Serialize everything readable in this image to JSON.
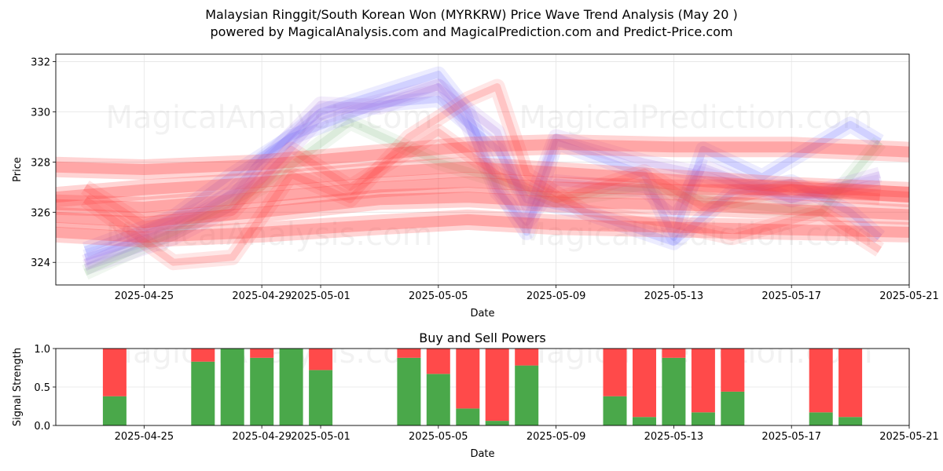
{
  "header": {
    "title_line1": "Malaysian Ringgit/South Korean Won (MYRKRW) Price Wave Trend Analysis (May 20 )",
    "title_line2": "powered by MagicalAnalysis.com and MagicalPrediction.com and Predict-Price.com"
  },
  "watermarks": [
    "MagicalAnalysis.com",
    "MagicalPrediction.com"
  ],
  "colors": {
    "buy": "#4aa84a",
    "sell": "#ff4a4a",
    "wave_red": "#ff3b3b",
    "wave_blue": "#6a6aff",
    "wave_purple": "#a070e0",
    "wave_green": "#88c088",
    "grid": "#e5e5e5"
  },
  "chart_data": [
    {
      "type": "line",
      "name": "price-wave-chart",
      "title": "",
      "xlabel": "Date",
      "ylabel": "Price",
      "xlim": [
        "2025-04-22",
        "2025-05-21"
      ],
      "ylim": [
        323.1,
        332.3
      ],
      "grid": true,
      "x_ticks": [
        "2025-04-25",
        "2025-04-29",
        "2025-05-01",
        "2025-05-05",
        "2025-05-09",
        "2025-05-13",
        "2025-05-17",
        "2025-05-21"
      ],
      "y_ticks": [
        324,
        326,
        328,
        330,
        332
      ],
      "series": [
        {
          "name": "price-path-1",
          "color": "blue",
          "x": [
            "2025-04-23",
            "2025-04-26",
            "2025-04-28",
            "2025-04-29",
            "2025-05-01",
            "2025-05-05",
            "2025-05-06",
            "2025-05-07",
            "2025-05-08",
            "2025-05-09",
            "2025-05-12",
            "2025-05-13",
            "2025-05-14",
            "2025-05-16",
            "2025-05-19",
            "2025-05-20"
          ],
          "values": [
            324.2,
            325.3,
            326.8,
            328.1,
            330.0,
            331.5,
            330.0,
            327.0,
            325.2,
            328.8,
            327.5,
            325.0,
            328.5,
            327.4,
            329.5,
            328.8
          ]
        },
        {
          "name": "price-path-2",
          "color": "purple",
          "x": [
            "2025-04-23",
            "2025-04-26",
            "2025-04-28",
            "2025-04-29",
            "2025-05-01",
            "2025-05-03",
            "2025-05-05",
            "2025-05-06",
            "2025-05-07",
            "2025-05-08",
            "2025-05-09",
            "2025-05-12",
            "2025-05-13",
            "2025-05-14",
            "2025-05-17",
            "2025-05-20"
          ],
          "values": [
            323.8,
            325.0,
            326.2,
            327.9,
            330.3,
            330.2,
            331.0,
            329.5,
            326.8,
            325.6,
            327.2,
            326.9,
            326.0,
            327.8,
            326.5,
            327.2
          ]
        },
        {
          "name": "price-path-3",
          "color": "green",
          "x": [
            "2025-04-23",
            "2025-04-26",
            "2025-04-29",
            "2025-05-02",
            "2025-05-05",
            "2025-05-07",
            "2025-05-09",
            "2025-05-12",
            "2025-05-15",
            "2025-05-18",
            "2025-05-20"
          ],
          "values": [
            323.6,
            325.2,
            327.0,
            329.6,
            328.0,
            327.3,
            326.5,
            327.0,
            326.3,
            326.0,
            328.8
          ]
        },
        {
          "name": "price-path-4",
          "color": "blue",
          "x": [
            "2025-04-23",
            "2025-04-26",
            "2025-04-28",
            "2025-04-30",
            "2025-05-03",
            "2025-05-05",
            "2025-05-07",
            "2025-05-08",
            "2025-05-10",
            "2025-05-13",
            "2025-05-15",
            "2025-05-17",
            "2025-05-19",
            "2025-05-20"
          ],
          "values": [
            324.5,
            325.8,
            327.5,
            329.0,
            330.3,
            330.5,
            328.5,
            326.5,
            326.0,
            324.8,
            326.8,
            327.2,
            326.0,
            325.0
          ]
        },
        {
          "name": "price-path-5",
          "color": "red",
          "x": [
            "2025-04-23",
            "2025-04-26",
            "2025-04-28",
            "2025-04-30",
            "2025-05-02",
            "2025-05-04",
            "2025-05-06",
            "2025-05-07",
            "2025-05-08",
            "2025-05-10",
            "2025-05-13",
            "2025-05-15",
            "2025-05-18",
            "2025-05-20"
          ],
          "values": [
            326.5,
            324.0,
            324.2,
            327.5,
            326.5,
            329.0,
            330.5,
            331.0,
            327.5,
            326.0,
            325.5,
            325.0,
            326.0,
            324.5
          ]
        },
        {
          "name": "price-path-6",
          "color": "red",
          "x": [
            "2025-04-23",
            "2025-04-25",
            "2025-04-28",
            "2025-04-30",
            "2025-05-02",
            "2025-05-05",
            "2025-05-07",
            "2025-05-09",
            "2025-05-12",
            "2025-05-14",
            "2025-05-17",
            "2025-05-20"
          ],
          "values": [
            327.0,
            325.5,
            326.0,
            328.5,
            327.0,
            329.2,
            327.5,
            326.5,
            327.6,
            326.2,
            327.0,
            326.6
          ]
        },
        {
          "name": "price-path-7",
          "color": "purple",
          "x": [
            "2025-04-23",
            "2025-04-26",
            "2025-04-29",
            "2025-05-01",
            "2025-05-05",
            "2025-05-07",
            "2025-05-08",
            "2025-05-09",
            "2025-05-12",
            "2025-05-14",
            "2025-05-17",
            "2025-05-20"
          ],
          "values": [
            324.0,
            325.6,
            327.3,
            329.8,
            331.0,
            329.2,
            326.0,
            329.0,
            328.0,
            327.5,
            326.5,
            327.5
          ]
        },
        {
          "name": "trend-band-upper",
          "color": "red",
          "x": [
            "2025-04-22",
            "2025-04-25",
            "2025-04-29",
            "2025-05-03",
            "2025-05-06",
            "2025-05-09",
            "2025-05-13",
            "2025-05-17",
            "2025-05-21"
          ],
          "values": [
            327.8,
            327.7,
            327.9,
            328.3,
            328.6,
            328.7,
            328.6,
            328.6,
            328.4
          ]
        },
        {
          "name": "trend-band-lower",
          "color": "red",
          "x": [
            "2025-04-22",
            "2025-04-25",
            "2025-04-29",
            "2025-05-03",
            "2025-05-06",
            "2025-05-09",
            "2025-05-13",
            "2025-05-17",
            "2025-05-21"
          ],
          "values": [
            325.2,
            325.0,
            325.2,
            325.5,
            325.7,
            325.5,
            325.4,
            325.3,
            325.2
          ]
        },
        {
          "name": "trend-center",
          "color": "red",
          "x": [
            "2025-04-22",
            "2025-04-25",
            "2025-04-29",
            "2025-05-03",
            "2025-05-06",
            "2025-05-09",
            "2025-05-13",
            "2025-05-17",
            "2025-05-21"
          ],
          "values": [
            326.3,
            326.2,
            326.6,
            327.0,
            327.2,
            327.0,
            326.9,
            326.9,
            326.6
          ]
        },
        {
          "name": "trend-center-2",
          "color": "red",
          "x": [
            "2025-04-22",
            "2025-04-25",
            "2025-04-29",
            "2025-05-03",
            "2025-05-06",
            "2025-05-09",
            "2025-05-13",
            "2025-05-17",
            "2025-05-21"
          ],
          "values": [
            326.6,
            326.9,
            327.2,
            327.6,
            327.8,
            327.6,
            327.3,
            327.0,
            326.8
          ]
        },
        {
          "name": "trend-center-3",
          "color": "red",
          "x": [
            "2025-04-22",
            "2025-04-25",
            "2025-04-29",
            "2025-05-03",
            "2025-05-06",
            "2025-05-09",
            "2025-05-13",
            "2025-05-17",
            "2025-05-21"
          ],
          "values": [
            325.8,
            325.6,
            326.0,
            326.5,
            326.6,
            326.4,
            326.3,
            326.1,
            325.9
          ]
        }
      ]
    },
    {
      "type": "bar",
      "name": "buy-sell-power-chart",
      "title": "Buy and Sell Powers",
      "xlabel": "Date",
      "ylabel": "Signal Strength",
      "xlim": [
        "2025-04-22",
        "2025-05-21"
      ],
      "ylim": [
        0,
        1
      ],
      "grid": true,
      "x_ticks": [
        "2025-04-25",
        "2025-04-29",
        "2025-05-01",
        "2025-05-05",
        "2025-05-09",
        "2025-05-13",
        "2025-05-17",
        "2025-05-21"
      ],
      "y_ticks": [
        0.0,
        0.5,
        1.0
      ],
      "y_tick_labels": [
        "0.0",
        "0.5",
        "1.0"
      ],
      "categories": [
        "2025-04-24",
        "2025-04-27",
        "2025-04-28",
        "2025-04-29",
        "2025-04-30",
        "2025-05-01",
        "2025-05-04",
        "2025-05-05",
        "2025-05-06",
        "2025-05-07",
        "2025-05-08",
        "2025-05-11",
        "2025-05-12",
        "2025-05-13",
        "2025-05-14",
        "2025-05-15",
        "2025-05-18",
        "2025-05-19"
      ],
      "series": [
        {
          "name": "Buy",
          "color": "green",
          "values": [
            0.38,
            0.83,
            1.0,
            0.88,
            1.0,
            0.72,
            0.88,
            0.67,
            0.22,
            0.06,
            0.78,
            0.38,
            0.11,
            0.88,
            0.17,
            0.44,
            0.17,
            0.11
          ]
        },
        {
          "name": "Sell",
          "color": "red",
          "values": [
            0.62,
            0.17,
            0.0,
            0.12,
            0.0,
            0.28,
            0.12,
            0.33,
            0.78,
            0.94,
            0.22,
            0.62,
            0.89,
            0.12,
            0.83,
            0.56,
            0.83,
            0.89
          ]
        }
      ]
    }
  ]
}
